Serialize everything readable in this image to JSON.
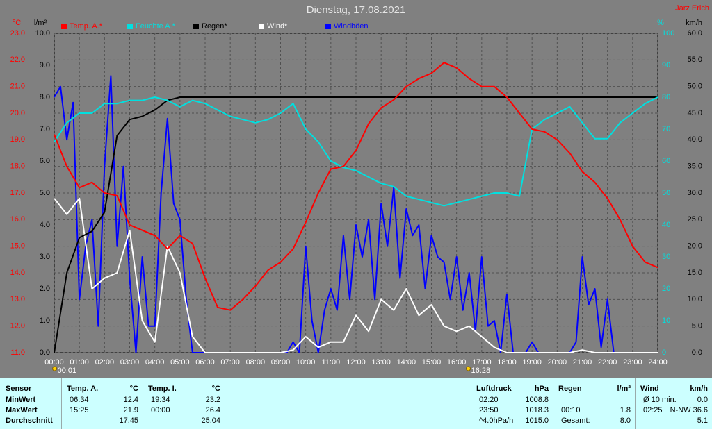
{
  "chart_data": {
    "type": "line",
    "title": "Dienstag, 17.08.2021",
    "author": "Jarz Erich",
    "grid": true,
    "xlim": [
      0,
      24
    ],
    "xticks": [
      {
        "value": 0,
        "label": "00:00"
      },
      {
        "value": 1,
        "label": "01:00"
      },
      {
        "value": 2,
        "label": "02:00"
      },
      {
        "value": 3,
        "label": "03:00"
      },
      {
        "value": 4,
        "label": "04:00"
      },
      {
        "value": 5,
        "label": "05:00"
      },
      {
        "value": 6,
        "label": "06:00"
      },
      {
        "value": 7,
        "label": "07:00"
      },
      {
        "value": 8,
        "label": "08:00"
      },
      {
        "value": 9,
        "label": "09:00"
      },
      {
        "value": 10,
        "label": "10:00"
      },
      {
        "value": 11,
        "label": "11:00"
      },
      {
        "value": 12,
        "label": "12:00"
      },
      {
        "value": 13,
        "label": "13:00"
      },
      {
        "value": 14,
        "label": "14:00"
      },
      {
        "value": 15,
        "label": "15:00"
      },
      {
        "value": 16,
        "label": "16:00"
      },
      {
        "value": 17,
        "label": "17:00"
      },
      {
        "value": 18,
        "label": "18:00"
      },
      {
        "value": 19,
        "label": "19:00"
      },
      {
        "value": 20,
        "label": "20:00"
      },
      {
        "value": 21,
        "label": "21:00"
      },
      {
        "value": 22,
        "label": "22:00"
      },
      {
        "value": 23,
        "label": "23:00"
      },
      {
        "value": 24,
        "label": "24:00"
      }
    ],
    "axes": [
      {
        "title": "°C",
        "color": "#ff0000",
        "lim": [
          11,
          23
        ],
        "ticks": [
          {
            "value": 11,
            "label": "11.0"
          },
          {
            "value": 12,
            "label": "12.0"
          },
          {
            "value": 13,
            "label": "13.0"
          },
          {
            "value": 14,
            "label": "14.0"
          },
          {
            "value": 15,
            "label": "15.0"
          },
          {
            "value": 16,
            "label": "16.0"
          },
          {
            "value": 17,
            "label": "17.0"
          },
          {
            "value": 18,
            "label": "18.0"
          },
          {
            "value": 19,
            "label": "19.0"
          },
          {
            "value": 20,
            "label": "20.0"
          },
          {
            "value": 21,
            "label": "21.0"
          },
          {
            "value": 22,
            "label": "22.0"
          },
          {
            "value": 23,
            "label": "23.0"
          }
        ]
      },
      {
        "title": "l/m²",
        "color": "#000000",
        "lim": [
          0,
          10
        ],
        "ticks": [
          {
            "value": 0,
            "label": "0.0"
          },
          {
            "value": 1,
            "label": "1.0"
          },
          {
            "value": 2,
            "label": "2.0"
          },
          {
            "value": 3,
            "label": "3.0"
          },
          {
            "value": 4,
            "label": "4.0"
          },
          {
            "value": 5,
            "label": "5.0"
          },
          {
            "value": 6,
            "label": "6.0"
          },
          {
            "value": 7,
            "label": "7.0"
          },
          {
            "value": 8,
            "label": "8.0"
          },
          {
            "value": 9,
            "label": "9.0"
          },
          {
            "value": 10,
            "label": "10.0"
          }
        ]
      },
      {
        "title": "%",
        "color": "#00e0e0",
        "lim": [
          0,
          100
        ],
        "ticks": [
          0,
          10,
          20,
          30,
          40,
          50,
          60,
          70,
          80,
          90,
          100
        ]
      },
      {
        "title": "km/h",
        "color": "#000000",
        "lim": [
          0,
          60
        ],
        "ticks": [
          {
            "value": 0,
            "label": "0.0"
          },
          {
            "value": 5,
            "label": "5.0"
          },
          {
            "value": 10,
            "label": "10.0"
          },
          {
            "value": 15,
            "label": "15.0"
          },
          {
            "value": 20,
            "label": "20.0"
          },
          {
            "value": 25,
            "label": "25.0"
          },
          {
            "value": 30,
            "label": "30.0"
          },
          {
            "value": 35,
            "label": "35.0"
          },
          {
            "value": 40,
            "label": "40.0"
          },
          {
            "value": 45,
            "label": "45.0"
          },
          {
            "value": 50,
            "label": "50.0"
          },
          {
            "value": 55,
            "label": "55.0"
          },
          {
            "value": 60,
            "label": "60.0"
          }
        ]
      }
    ],
    "series": [
      {
        "name": "Temp. A.*",
        "color": "#ff0000",
        "axis": 0,
        "x": [
          0,
          0.5,
          1,
          1.5,
          2,
          2.5,
          3,
          3.5,
          4,
          4.5,
          5,
          5.5,
          6,
          6.5,
          7,
          7.5,
          8,
          8.5,
          9,
          9.5,
          10,
          10.5,
          11,
          11.5,
          12,
          12.5,
          13,
          13.5,
          14,
          14.5,
          15,
          15.5,
          16,
          16.5,
          17,
          17.5,
          18,
          18.5,
          19,
          19.5,
          20,
          20.5,
          21,
          21.5,
          22,
          22.5,
          23,
          23.5,
          24
        ],
        "values": [
          19.2,
          18.0,
          17.2,
          17.4,
          17.0,
          16.9,
          15.8,
          15.6,
          15.4,
          14.9,
          15.4,
          15.1,
          13.8,
          12.7,
          12.6,
          13.0,
          13.5,
          14.1,
          14.4,
          14.9,
          15.9,
          17.0,
          17.9,
          18.0,
          18.6,
          19.6,
          20.2,
          20.5,
          21.0,
          21.3,
          21.5,
          21.9,
          21.7,
          21.3,
          21.0,
          21.0,
          20.6,
          20.0,
          19.4,
          19.3,
          19.0,
          18.5,
          17.8,
          17.4,
          16.8,
          16.0,
          15.0,
          14.4,
          14.2
        ]
      },
      {
        "name": "Feuchte A.*",
        "color": "#00e0e0",
        "axis": 2,
        "x": [
          0,
          0.5,
          1,
          1.5,
          2,
          2.5,
          3,
          3.5,
          4,
          4.5,
          5,
          5.5,
          6,
          6.5,
          7,
          7.5,
          8,
          8.5,
          9,
          9.5,
          10,
          10.5,
          11,
          11.5,
          12,
          12.5,
          13,
          13.5,
          14,
          14.5,
          15,
          15.5,
          16,
          16.5,
          17,
          17.5,
          18,
          18.5,
          19,
          19.5,
          20,
          20.5,
          21,
          21.5,
          22,
          22.5,
          23,
          23.5,
          24
        ],
        "values": [
          66,
          72,
          75,
          75,
          78,
          78,
          79,
          79,
          80,
          79,
          77,
          79,
          78,
          76,
          74,
          73,
          72,
          73,
          75,
          78,
          70,
          66,
          60,
          58,
          57,
          55,
          53,
          52,
          49,
          48,
          47,
          46,
          47,
          48,
          49,
          50,
          50,
          49,
          70,
          73,
          75,
          77,
          72,
          67,
          67,
          72,
          75,
          78,
          80
        ]
      },
      {
        "name": "Regen*",
        "color": "#000000",
        "axis": 1,
        "x": [
          0,
          0.5,
          1,
          1.5,
          2,
          2.5,
          3,
          3.5,
          4,
          4.5,
          5,
          5.5,
          6,
          6.5,
          7,
          7.5,
          8,
          8.5,
          9,
          9.5,
          10,
          10.5,
          11,
          11.5,
          12,
          12.5,
          13,
          13.5,
          14,
          14.5,
          15,
          15.5,
          16,
          16.5,
          17,
          17.5,
          18,
          18.5,
          19,
          19.5,
          20,
          20.5,
          21,
          21.5,
          22,
          22.5,
          23,
          23.5,
          24
        ],
        "values": [
          0,
          2.5,
          3.6,
          3.8,
          4.4,
          6.8,
          7.3,
          7.4,
          7.6,
          7.9,
          8.0,
          8.0,
          8.0,
          8.0,
          8.0,
          8.0,
          8.0,
          8.0,
          8.0,
          8.0,
          8.0,
          8.0,
          8.0,
          8.0,
          8.0,
          8.0,
          8.0,
          8.0,
          8.0,
          8.0,
          8.0,
          8.0,
          8.0,
          8.0,
          8.0,
          8.0,
          8.0,
          8.0,
          8.0,
          8.0,
          8.0,
          8.0,
          8.0,
          8.0,
          8.0,
          8.0,
          8.0,
          8.0,
          8.0
        ]
      },
      {
        "name": "Wind*",
        "color": "#ffffff",
        "axis": 3,
        "x": [
          0,
          0.5,
          1,
          1.5,
          2,
          2.5,
          3,
          3.5,
          4,
          4.5,
          5,
          5.5,
          6,
          6.5,
          7,
          7.5,
          8,
          8.5,
          9,
          9.5,
          10,
          10.5,
          11,
          11.5,
          12,
          12.5,
          13,
          13.5,
          14,
          14.5,
          15,
          15.5,
          16,
          16.5,
          17,
          17.5,
          18,
          18.5,
          19,
          19.5,
          20,
          20.5,
          21,
          21.5,
          22,
          22.5,
          23,
          23.5,
          24
        ],
        "values": [
          29,
          26,
          29,
          12,
          14,
          15,
          23,
          6,
          2,
          20,
          15,
          3,
          0,
          0,
          0,
          0,
          0,
          0,
          0,
          0.5,
          3,
          1,
          2,
          2,
          7,
          4,
          10,
          8,
          12,
          7,
          9,
          5,
          4,
          5,
          3,
          1,
          0,
          0,
          0,
          0,
          0,
          0,
          0.5,
          0,
          0,
          0,
          0,
          0,
          0
        ]
      },
      {
        "name": "Windböen",
        "color": "#0000ff",
        "axis": 3,
        "x": [
          0,
          0.25,
          0.5,
          0.75,
          1,
          1.25,
          1.5,
          1.75,
          2,
          2.25,
          2.5,
          2.75,
          3,
          3.25,
          3.5,
          3.75,
          4,
          4.25,
          4.5,
          4.75,
          5,
          5.25,
          5.5,
          5.75,
          6,
          6.25,
          6.5,
          6.75,
          7,
          7.25,
          7.5,
          7.75,
          8,
          8.25,
          8.5,
          8.75,
          9,
          9.25,
          9.5,
          9.75,
          10,
          10.25,
          10.5,
          10.75,
          11,
          11.25,
          11.5,
          11.75,
          12,
          12.25,
          12.5,
          12.75,
          13,
          13.25,
          13.5,
          13.75,
          14,
          14.25,
          14.5,
          14.75,
          15,
          15.25,
          15.5,
          15.75,
          16,
          16.25,
          16.5,
          16.75,
          17,
          17.25,
          17.5,
          17.75,
          18,
          18.25,
          18.5,
          18.75,
          19,
          19.25,
          19.5,
          19.75,
          20,
          20.25,
          20.5,
          20.75,
          21,
          21.25,
          21.5,
          21.75,
          22,
          22.25,
          22.5,
          22.75,
          23,
          23.25,
          23.5,
          23.75,
          24
        ],
        "values": [
          48,
          50,
          40,
          47,
          10,
          20,
          25,
          5,
          35,
          52,
          20,
          35,
          14,
          0,
          18,
          5,
          5,
          30,
          44,
          28,
          25,
          10,
          0,
          0,
          0,
          0,
          0,
          0,
          0,
          0,
          0,
          0,
          0,
          0,
          0,
          0,
          0,
          0,
          2,
          0,
          20,
          6,
          0,
          8,
          12,
          8,
          22,
          10,
          24,
          18,
          25,
          10,
          28,
          20,
          31,
          14,
          27,
          22,
          24,
          12,
          22,
          18,
          17,
          10,
          18,
          8,
          15,
          4,
          18,
          5,
          6,
          0,
          11,
          0,
          0,
          0,
          2,
          0,
          0,
          0,
          0,
          0,
          0,
          2,
          18,
          9,
          12,
          1,
          10,
          0,
          0,
          0,
          0,
          0,
          0,
          0,
          0
        ]
      }
    ],
    "annotations": [
      {
        "x": 0.0167,
        "label": "00:01"
      },
      {
        "x": 16.467,
        "label": "16:28"
      }
    ]
  },
  "summary": {
    "labels": {
      "header": "Sensor",
      "rows": [
        "MinWert",
        "MaxWert",
        "Durchschnitt"
      ]
    },
    "columns": [
      {
        "header": "Temp. A.",
        "unit": "°C",
        "rows": [
          [
            "06:34",
            "12.4"
          ],
          [
            "15:25",
            "21.9"
          ],
          [
            "17.45"
          ]
        ]
      },
      {
        "header": "Temp. I.",
        "unit": "°C",
        "rows": [
          [
            "19:34",
            "23.2"
          ],
          [
            "00:00",
            "26.4"
          ],
          [
            "25.04"
          ]
        ]
      },
      {
        "header": "Luftdruck",
        "unit": "hPa",
        "rows": [
          [
            "02:20",
            "1008.8"
          ],
          [
            "23:50",
            "1018.3"
          ],
          [
            "^4.0hPa/h",
            "1015.0"
          ]
        ]
      },
      {
        "header": "Regen",
        "unit": "l/m²",
        "rows": [
          [],
          [
            "00:10",
            "1.8"
          ],
          [
            "Gesamt:",
            "8.0"
          ]
        ]
      },
      {
        "header": "Wind",
        "unit": "km/h",
        "rows": [
          [
            "Ø 10 min.",
            "0.0"
          ],
          [
            "02:25",
            "N-NW 36.6"
          ],
          [
            "5.1"
          ]
        ]
      }
    ]
  }
}
